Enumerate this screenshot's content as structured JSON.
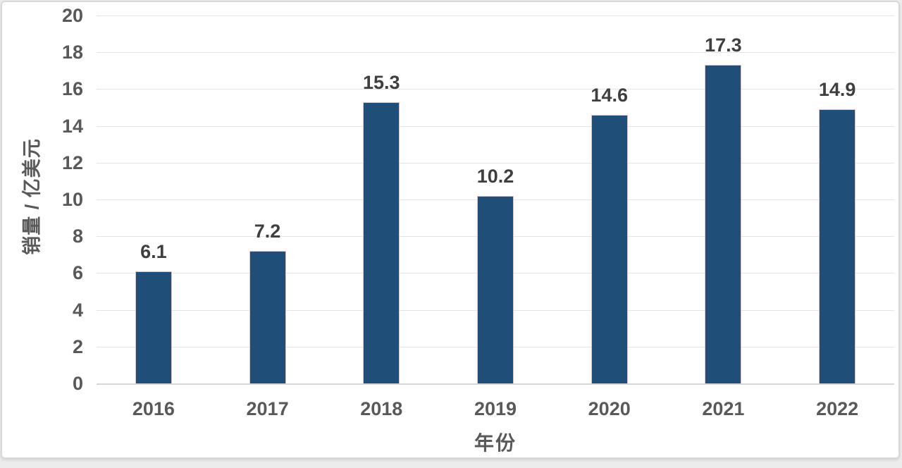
{
  "chart_data": {
    "type": "bar",
    "title": "",
    "categories": [
      "2016",
      "2017",
      "2018",
      "2019",
      "2020",
      "2021",
      "2022"
    ],
    "values": [
      6.1,
      7.2,
      15.3,
      10.2,
      14.6,
      17.3,
      14.9
    ],
    "value_labels": [
      "6.1",
      "7.2",
      "15.3",
      "10.2",
      "14.6",
      "17.3",
      "14.9"
    ],
    "xlabel": "年份",
    "ylabel": "销量 / 亿美元",
    "ylim": [
      0,
      20
    ],
    "y_ticks": [
      0,
      2,
      4,
      6,
      8,
      10,
      12,
      14,
      16,
      18,
      20
    ],
    "grid": "horizontal-only",
    "legend": "none",
    "colors": {
      "bar_fill": "#1F4E79",
      "bar_border": "#EBBFBB",
      "gridline": "#E4E4E4",
      "axis_line": "#D6D6D6",
      "tick_label": "#595959",
      "data_label": "#3F3F3F",
      "card_border": "#D9D9D9",
      "background": "#FFFFFF"
    }
  }
}
